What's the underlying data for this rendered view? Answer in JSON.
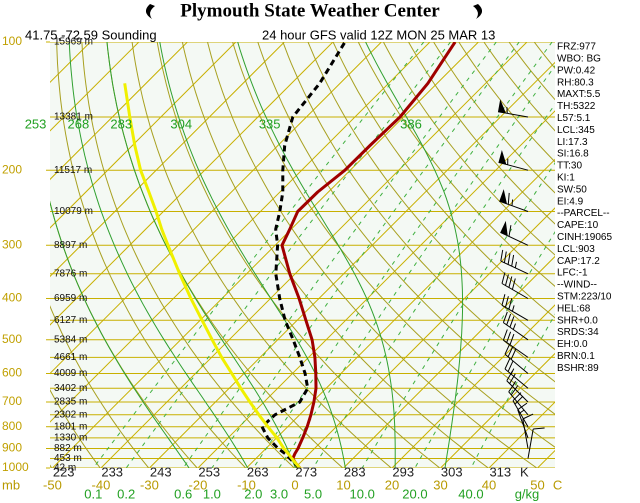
{
  "chart_data": {
    "type": "skewt",
    "title": "Plymouth State Weather Center",
    "location": "41.75,-72.59 Sounding",
    "subtitle": "24 hour GFS valid 12Z MON 25 MAR 13",
    "pressure": [
      1000,
      975,
      950,
      925,
      900,
      850,
      800,
      750,
      700,
      650,
      600,
      550,
      500,
      450,
      400,
      350,
      300,
      275,
      250,
      225,
      200,
      175,
      150,
      125,
      100
    ],
    "series": [
      {
        "color": "#a00000",
        "dashed": false,
        "values": [
          1.0,
          -0.8,
          -2.4,
          -3.0,
          -3.4,
          -4.6,
          -6.0,
          -7.7,
          -9.7,
          -12.1,
          -15.2,
          -18.7,
          -22.9,
          -28.2,
          -34.1,
          -41.1,
          -48.6,
          -50.3,
          -52.3,
          -52.2,
          -51.1,
          -51.0,
          -50.7,
          -51.9,
          -54.8
        ]
      },
      {
        "color": "#000000",
        "dashed": true,
        "values": [
          0.8,
          -1.0,
          -3.0,
          -5.0,
          -7.5,
          -11.8,
          -15.3,
          -15.1,
          -12.6,
          -13.8,
          -17.4,
          -21.8,
          -26.8,
          -32.5,
          -38.1,
          -44.0,
          -49.5,
          -53.2,
          -56.0,
          -59.4,
          -63.9,
          -68.6,
          -72.8,
          -74.2,
          -77.5
        ]
      },
      {
        "color": "#f0f000",
        "dashed": false,
        "values": [
          1.0,
          -0.8,
          -2.6,
          -4.4,
          -6.3,
          -9.9,
          -14.1,
          -18.4,
          -22.9,
          -27.6,
          -32.5,
          -37.9,
          -43.5,
          -49.6,
          -56.4,
          -63.8,
          -72.1,
          -76.7,
          -81.5,
          -87.0,
          -93.2,
          -99.5,
          -106.4,
          -114.4,
          null
        ]
      }
    ],
    "log_y": true,
    "ylim": [
      1000,
      100
    ],
    "yticks": [
      1000,
      900,
      800,
      700,
      600,
      500,
      400,
      300,
      200,
      100
    ],
    "y_unit": "mb",
    "xlim": [
      -50.5,
      53.6
    ],
    "xticks": [
      -50,
      -40,
      -30,
      -20,
      -10,
      0,
      10,
      20,
      30,
      40,
      50
    ],
    "x_unit": "C",
    "kelvin_ticks": [
      223,
      233,
      243,
      253,
      263,
      273,
      283,
      293,
      303,
      313
    ],
    "kelvin_unit": "K",
    "heights": {
      "pressure": [
        100,
        150,
        200,
        250,
        300,
        350,
        400,
        450,
        500,
        550,
        600,
        650,
        700,
        750,
        800,
        850,
        900,
        950,
        1000
      ],
      "labels": [
        "15969 m",
        "13381 m",
        "11517 m",
        "10079 m",
        "8897 m",
        "7876 m",
        "6959 m",
        "6127 m",
        "5384 m",
        "4661 m",
        "4009 m",
        "3402 m",
        "2835 m",
        "2302 m",
        "1801 m",
        "1330 m",
        "882 m",
        "453 m",
        "42 m"
      ]
    },
    "theta_e_labels": [
      253,
      268,
      283,
      304,
      335,
      386
    ],
    "mixing_ratios": [
      0.1,
      0.2,
      0.6,
      {
        "value": 1,
        "label": "1.0"
      },
      {
        "value": 2,
        "label": "2.0"
      },
      {
        "value": 3,
        "label": "3.0"
      },
      {
        "value": 5,
        "label": "5.0"
      },
      {
        "value": 10,
        "label": "10.0"
      },
      {
        "value": 20,
        "label": "20.0"
      },
      {
        "value": 40,
        "label": "40.0"
      }
    ],
    "mixing_ratio_unit": "g/kg",
    "winds": {
      "pressure": [
        150,
        200,
        250,
        300,
        350,
        400,
        450,
        500,
        550,
        600,
        650,
        700,
        750,
        800,
        850,
        900,
        950
      ],
      "direction": [
        280,
        285,
        290,
        295,
        295,
        300,
        300,
        305,
        305,
        310,
        310,
        315,
        320,
        330,
        340,
        350,
        10
      ],
      "speed": [
        55,
        55,
        65,
        60,
        45,
        40,
        35,
        35,
        30,
        30,
        25,
        25,
        20,
        20,
        15,
        10,
        10
      ]
    },
    "indices": [
      "FRZ:977",
      "WBO: BG",
      "PW:0.42",
      "RH:80.3",
      "MAXT:5.5",
      "TH:5322",
      "L57:5.1",
      "LCL:345",
      "LI:17.3",
      "SI:16.8",
      "TT:30",
      "KI:1",
      "SW:50",
      "EI:4.9",
      "--PARCEL--",
      "CAPE:10",
      "CINH:19065",
      "LCL:903",
      "CAP:17.2",
      "LFC:-1",
      "--WIND--",
      "STM:223/10",
      "HEL:68",
      "SHR+0.0",
      "SRDS:34",
      "EH:0.0",
      "BRN:0.1",
      "BSHR:89"
    ]
  }
}
